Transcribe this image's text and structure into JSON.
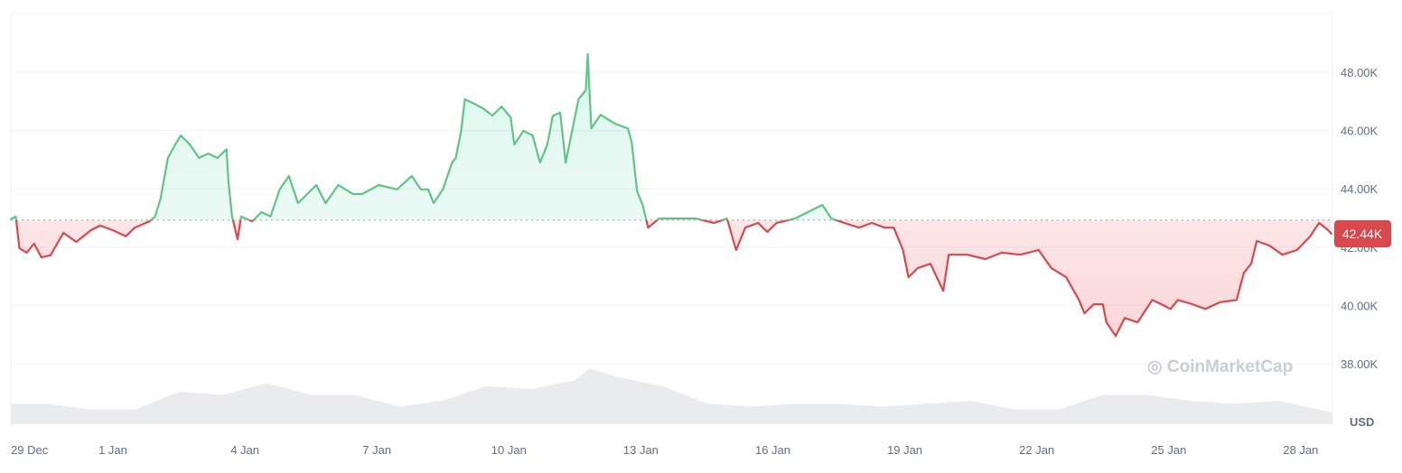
{
  "chart_data": {
    "type": "line",
    "currency_label": "USD",
    "watermark": "CoinMarketCap",
    "current_price_label": "42.44K",
    "baseline_price": 42.93,
    "ylim": [
      37000,
      49500
    ],
    "y_ticks": [
      {
        "value": 38000,
        "label": "38.00K"
      },
      {
        "value": 40000,
        "label": "40.00K"
      },
      {
        "value": 42000,
        "label": "42.00K"
      },
      {
        "value": 44000,
        "label": "44.00K"
      },
      {
        "value": 46000,
        "label": "46.00K"
      },
      {
        "value": 48000,
        "label": "48.00K"
      }
    ],
    "x_ticks": [
      "29 Dec",
      "1 Jan",
      "4 Jan",
      "7 Jan",
      "10 Jan",
      "13 Jan",
      "16 Jan",
      "19 Jan",
      "22 Jan",
      "25 Jan",
      "28 Jan"
    ],
    "grid": true,
    "colors": {
      "up": "#16c784",
      "up_line": "#5fc587",
      "down": "#ea3943",
      "down_line": "#d9484d",
      "label_bg": "#d9484d",
      "grid": "#eff2f5",
      "volume": "#e9ebef"
    },
    "price_points": [
      [
        "29 Dec 16:00",
        42950
      ],
      [
        "29 Dec 19:00",
        43050
      ],
      [
        "29 Dec 21:00",
        41960
      ],
      [
        "30 Dec 01:00",
        41810
      ],
      [
        "30 Dec 05:00",
        42120
      ],
      [
        "30 Dec 09:00",
        41650
      ],
      [
        "30 Dec 14:00",
        41720
      ],
      [
        "30 Dec 21:00",
        42490
      ],
      [
        "31 Dec 04:00",
        42180
      ],
      [
        "31 Dec 12:00",
        42580
      ],
      [
        "31 Dec 17:00",
        42740
      ],
      [
        "1 Jan 00:00",
        42580
      ],
      [
        "1 Jan 07:00",
        42370
      ],
      [
        "1 Jan 12:00",
        42670
      ],
      [
        "1 Jan 20:00",
        42890
      ],
      [
        "1 Jan 23:00",
        43050
      ],
      [
        "2 Jan 02:00",
        43670
      ],
      [
        "2 Jan 06:00",
        45060
      ],
      [
        "2 Jan 10:00",
        45520
      ],
      [
        "2 Jan 13:00",
        45830
      ],
      [
        "2 Jan 18:00",
        45520
      ],
      [
        "2 Jan 23:00",
        45060
      ],
      [
        "3 Jan 04:00",
        45210
      ],
      [
        "3 Jan 09:00",
        45060
      ],
      [
        "3 Jan 14:00",
        45360
      ],
      [
        "3 Jan 15:00",
        44280
      ],
      [
        "3 Jan 17:00",
        43050
      ],
      [
        "3 Jan 20:00",
        42270
      ],
      [
        "3 Jan 22:00",
        43050
      ],
      [
        "4 Jan 04:00",
        42890
      ],
      [
        "4 Jan 09:00",
        43200
      ],
      [
        "4 Jan 14:00",
        43050
      ],
      [
        "4 Jan 19:00",
        43980
      ],
      [
        "5 Jan 00:00",
        44440
      ],
      [
        "5 Jan 05:00",
        43510
      ],
      [
        "5 Jan 10:00",
        43820
      ],
      [
        "5 Jan 15:00",
        44130
      ],
      [
        "5 Jan 20:00",
        43510
      ],
      [
        "6 Jan 03:00",
        44130
      ],
      [
        "6 Jan 11:00",
        43820
      ],
      [
        "6 Jan 16:00",
        43820
      ],
      [
        "7 Jan 01:00",
        44130
      ],
      [
        "7 Jan 11:00",
        43980
      ],
      [
        "7 Jan 19:00",
        44440
      ],
      [
        "8 Jan 00:00",
        43980
      ],
      [
        "8 Jan 04:00",
        43980
      ],
      [
        "8 Jan 07:00",
        43510
      ],
      [
        "8 Jan 12:00",
        43980
      ],
      [
        "8 Jan 17:00",
        44900
      ],
      [
        "8 Jan 19:00",
        45060
      ],
      [
        "8 Jan 22:00",
        45990
      ],
      [
        "9 Jan 00:00",
        47070
      ],
      [
        "9 Jan 05:00",
        46920
      ],
      [
        "9 Jan 10:00",
        46760
      ],
      [
        "9 Jan 15:00",
        46510
      ],
      [
        "9 Jan 20:00",
        46820
      ],
      [
        "10 Jan 01:00",
        46450
      ],
      [
        "10 Jan 03:00",
        45520
      ],
      [
        "10 Jan 08:00",
        45990
      ],
      [
        "10 Jan 13:00",
        45830
      ],
      [
        "10 Jan 17:00",
        44900
      ],
      [
        "10 Jan 21:00",
        45520
      ],
      [
        "11 Jan 00:00",
        46510
      ],
      [
        "11 Jan 04:00",
        46610
      ],
      [
        "11 Jan 07:00",
        44900
      ],
      [
        "11 Jan 14:00",
        47070
      ],
      [
        "11 Jan 18:00",
        47380
      ],
      [
        "11 Jan 19:00",
        48620
      ],
      [
        "11 Jan 21:00",
        46070
      ],
      [
        "12 Jan 02:00",
        46540
      ],
      [
        "12 Jan 10:00",
        46230
      ],
      [
        "12 Jan 17:00",
        46070
      ],
      [
        "12 Jan 19:00",
        45600
      ],
      [
        "12 Jan 22:00",
        43910
      ],
      [
        "13 Jan 01:00",
        43450
      ],
      [
        "13 Jan 04:00",
        42670
      ],
      [
        "13 Jan 10:00",
        42980
      ],
      [
        "13 Jan 20:00",
        42980
      ],
      [
        "14 Jan 06:00",
        42980
      ],
      [
        "14 Jan 16:00",
        42830
      ],
      [
        "14 Jan 23:00",
        42980
      ],
      [
        "15 Jan 04:00",
        41900
      ],
      [
        "15 Jan 09:00",
        42670
      ],
      [
        "15 Jan 16:00",
        42830
      ],
      [
        "15 Jan 21:00",
        42520
      ],
      [
        "16 Jan 02:00",
        42830
      ],
      [
        "16 Jan 12:00",
        42980
      ],
      [
        "16 Jan 22:00",
        43290
      ],
      [
        "17 Jan 03:00",
        43450
      ],
      [
        "17 Jan 08:00",
        42980
      ],
      [
        "17 Jan 15:00",
        42830
      ],
      [
        "17 Jan 23:00",
        42670
      ],
      [
        "18 Jan 06:00",
        42830
      ],
      [
        "18 Jan 13:00",
        42670
      ],
      [
        "18 Jan 18:00",
        42670
      ],
      [
        "18 Jan 23:00",
        41900
      ],
      [
        "19 Jan 02:00",
        40970
      ],
      [
        "19 Jan 07:00",
        41280
      ],
      [
        "19 Jan 14:00",
        41430
      ],
      [
        "19 Jan 21:00",
        40500
      ],
      [
        "20 Jan 00:00",
        41740
      ],
      [
        "20 Jan 10:00",
        41740
      ],
      [
        "20 Jan 20:00",
        41590
      ],
      [
        "21 Jan 05:00",
        41810
      ],
      [
        "21 Jan 15:00",
        41740
      ],
      [
        "22 Jan 01:00",
        41900
      ],
      [
        "22 Jan 08:00",
        41280
      ],
      [
        "22 Jan 16:00",
        40970
      ],
      [
        "22 Jan 23:00",
        40190
      ],
      [
        "23 Jan 02:00",
        39730
      ],
      [
        "23 Jan 07:00",
        40040
      ],
      [
        "23 Jan 12:00",
        40040
      ],
      [
        "23 Jan 14:00",
        39420
      ],
      [
        "23 Jan 19:00",
        38950
      ],
      [
        "24 Jan 00:00",
        39570
      ],
      [
        "24 Jan 07:00",
        39420
      ],
      [
        "24 Jan 15:00",
        40190
      ],
      [
        "24 Jan 20:00",
        40040
      ],
      [
        "25 Jan 01:00",
        39880
      ],
      [
        "25 Jan 05:00",
        40190
      ],
      [
        "25 Jan 13:00",
        40040
      ],
      [
        "25 Jan 20:00",
        39880
      ],
      [
        "26 Jan 04:00",
        40110
      ],
      [
        "26 Jan 13:00",
        40190
      ],
      [
        "26 Jan 17:00",
        41120
      ],
      [
        "26 Jan 21:00",
        41430
      ],
      [
        "27 Jan 00:00",
        42210
      ],
      [
        "27 Jan 07:00",
        42050
      ],
      [
        "27 Jan 14:00",
        41740
      ],
      [
        "27 Jan 22:00",
        41900
      ],
      [
        "28 Jan 05:00",
        42360
      ],
      [
        "28 Jan 10:00",
        42830
      ],
      [
        "28 Jan 15:00",
        42580
      ],
      [
        "28 Jan 17:00",
        42440
      ]
    ],
    "volume_relative": [
      [
        "29 Dec 16:00",
        0.35
      ],
      [
        "30 Dec 12:00",
        0.35
      ],
      [
        "31 Dec 12:00",
        0.25
      ],
      [
        "1 Jan 12:00",
        0.25
      ],
      [
        "2 Jan 12:00",
        0.55
      ],
      [
        "3 Jan 12:00",
        0.5
      ],
      [
        "4 Jan 12:00",
        0.7
      ],
      [
        "5 Jan 12:00",
        0.5
      ],
      [
        "6 Jan 12:00",
        0.5
      ],
      [
        "7 Jan 12:00",
        0.3
      ],
      [
        "8 Jan 12:00",
        0.4
      ],
      [
        "9 Jan 12:00",
        0.65
      ],
      [
        "10 Jan 12:00",
        0.6
      ],
      [
        "11 Jan 12:00",
        0.75
      ],
      [
        "11 Jan 20:00",
        0.95
      ],
      [
        "12 Jan 12:00",
        0.8
      ],
      [
        "13 Jan 12:00",
        0.65
      ],
      [
        "14 Jan 12:00",
        0.35
      ],
      [
        "15 Jan 12:00",
        0.3
      ],
      [
        "16 Jan 12:00",
        0.35
      ],
      [
        "17 Jan 12:00",
        0.35
      ],
      [
        "18 Jan 12:00",
        0.3
      ],
      [
        "19 Jan 12:00",
        0.35
      ],
      [
        "20 Jan 12:00",
        0.4
      ],
      [
        "21 Jan 12:00",
        0.25
      ],
      [
        "22 Jan 12:00",
        0.25
      ],
      [
        "23 Jan 12:00",
        0.5
      ],
      [
        "24 Jan 12:00",
        0.5
      ],
      [
        "25 Jan 12:00",
        0.4
      ],
      [
        "26 Jan 12:00",
        0.35
      ],
      [
        "27 Jan 12:00",
        0.4
      ],
      [
        "28 Jan 17:00",
        0.2
      ]
    ]
  }
}
